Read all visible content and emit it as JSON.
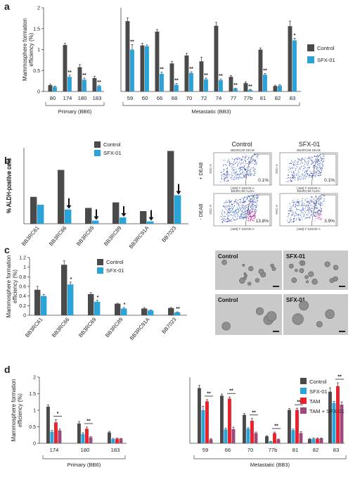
{
  "colors": {
    "control": "#4a4a4a",
    "sfx": "#2aa3d8",
    "tam": "#e8232e",
    "tamsfx_a": "#e8232e",
    "tamsfx_b": "#5a6cc0"
  },
  "panels": {
    "a": "a",
    "b": "b",
    "c": "c",
    "d": "d"
  },
  "chart_data": [
    {
      "id": "a",
      "type": "bar",
      "ylabel": "Mammosphere formation efficiency (%)",
      "ylim": [
        0,
        2
      ],
      "yticks": [
        "0",
        "0.5",
        "1",
        "1.5",
        "2"
      ],
      "categories": [
        "80",
        "174",
        "180",
        "183",
        "59",
        "60",
        "66",
        "68",
        "70",
        "72",
        "74",
        "77",
        "77b",
        "81",
        "82",
        "83"
      ],
      "groups": [
        {
          "label": "Primary (BB6)",
          "from": 0,
          "to": 3
        },
        {
          "label": "Metastatic (BB3)",
          "from": 4,
          "to": 15
        }
      ],
      "legend": [
        "Control",
        "SFX-01"
      ],
      "series": [
        {
          "name": "Control",
          "values": [
            0.15,
            1.11,
            0.58,
            0.32,
            1.68,
            1.1,
            1.43,
            0.67,
            0.86,
            0.72,
            1.57,
            0.35,
            0.2,
            1.0,
            0.13,
            1.56
          ]
        },
        {
          "name": "SFX-01",
          "values": [
            0.11,
            0.35,
            0.28,
            0.13,
            1.0,
            1.08,
            0.42,
            0.16,
            0.44,
            0.29,
            0.27,
            0.07,
            0.04,
            0.4,
            0.14,
            1.22
          ]
        }
      ],
      "errors": [
        [
          0.02,
          0.04,
          0.06,
          0.04,
          0.08,
          0.05,
          0.05,
          0.05,
          0.05,
          0.1,
          0.08,
          0.03,
          0.03,
          0.04,
          0.02,
          0.12
        ],
        [
          0.02,
          0.04,
          0.04,
          0.02,
          0.12,
          0.03,
          0.04,
          0.03,
          0.03,
          0.03,
          0.03,
          0.01,
          0.01,
          0.03,
          0.02,
          0.05
        ]
      ],
      "stars": [
        "",
        "**",
        "**",
        "**",
        "**",
        "",
        "**",
        "**",
        "**",
        "**",
        "**",
        "**",
        "**",
        "**",
        "",
        "*"
      ]
    },
    {
      "id": "b",
      "type": "bar",
      "ylabel": "% ALDH-positive cells",
      "ylim": [
        0,
        48
      ],
      "categories": [
        "BB3RC61",
        "BB3RC66",
        "BB3RC69",
        "BB3RC89",
        "BB3RC91A",
        "BB7023"
      ],
      "legend": [
        "Control",
        "SFX-01"
      ],
      "series": [
        {
          "name": "Control",
          "values": [
            17,
            34,
            10,
            13.5,
            8,
            46
          ]
        },
        {
          "name": "SFX-01",
          "values": [
            12,
            9,
            2,
            4,
            1.5,
            18
          ]
        }
      ],
      "arrows": [
        false,
        true,
        true,
        true,
        true,
        true
      ]
    },
    {
      "id": "c",
      "type": "bar",
      "ylabel": "Mammosphere formation efficiency (%)",
      "ylim": [
        0,
        1.2
      ],
      "yticks": [
        "0",
        "0.2",
        "0.4",
        "0.6",
        "0.8",
        "1",
        "1.2"
      ],
      "categories": [
        "BB3RC61",
        "BB3RC66",
        "BB3RC69",
        "BB3RC89",
        "BB3RC91A",
        "BB7023"
      ],
      "legend": [
        "Control",
        "SFX-01"
      ],
      "series": [
        {
          "name": "Control",
          "values": [
            0.53,
            1.05,
            0.44,
            0.24,
            0.14,
            0.15
          ]
        },
        {
          "name": "SFX-01",
          "values": [
            0.4,
            0.64,
            0.28,
            0.14,
            0.1,
            0.06
          ]
        }
      ],
      "errors": [
        [
          0.07,
          0.08,
          0.03,
          0.01,
          0.02,
          0.01
        ],
        [
          0.03,
          0.05,
          0.03,
          0.02,
          0.01,
          0.01
        ]
      ],
      "stars": [
        "",
        "*",
        "*",
        "*",
        "",
        "**"
      ]
    },
    {
      "id": "d",
      "type": "bar",
      "ylabel": "Mammosphere formation efficiency (%)",
      "ylim": [
        0,
        2
      ],
      "yticks": [
        "0",
        "0.5",
        "1",
        "1.5",
        "2"
      ],
      "categories": [
        "174",
        "180",
        "183",
        "59",
        "66",
        "70",
        "77b",
        "81",
        "82",
        "83"
      ],
      "groups": [
        {
          "label": "Primary (BB6)",
          "from": 0,
          "to": 2
        },
        {
          "label": "Metastatic (BB3)",
          "from": 3,
          "to": 9
        }
      ],
      "legend": [
        "Control",
        "SFX-01",
        "TAM",
        "TAM + SFX-01"
      ],
      "series": [
        {
          "name": "Control",
          "values": [
            1.11,
            0.6,
            0.33,
            1.67,
            1.44,
            0.86,
            0.21,
            1.01,
            0.13,
            1.56
          ]
        },
        {
          "name": "SFX-01",
          "values": [
            0.35,
            0.28,
            0.13,
            1.0,
            0.42,
            0.44,
            0.05,
            0.4,
            0.14,
            1.22
          ]
        },
        {
          "name": "TAM",
          "values": [
            0.63,
            0.44,
            0.14,
            1.27,
            1.35,
            0.68,
            0.31,
            1.01,
            0.14,
            1.73
          ]
        },
        {
          "name": "TAM + SFX-01",
          "values": [
            0.39,
            0.18,
            0.14,
            0.12,
            0.43,
            0.31,
            0.12,
            0.31,
            0.15,
            1.17
          ]
        }
      ],
      "errors": [
        [
          0.05,
          0.06,
          0.03,
          0.08,
          0.05,
          0.04,
          0.02,
          0.04,
          0.02,
          0.12
        ],
        [
          0.04,
          0.04,
          0.02,
          0.12,
          0.04,
          0.03,
          0.01,
          0.03,
          0.02,
          0.05
        ],
        [
          0.08,
          0.05,
          0.02,
          0.05,
          0.05,
          0.07,
          0.03,
          0.05,
          0.02,
          0.1
        ],
        [
          0.04,
          0.02,
          0.01,
          0.02,
          0.06,
          0.03,
          0.01,
          0.04,
          0.01,
          0.08
        ]
      ],
      "brackets": [
        "*",
        "**",
        "",
        "**",
        "**",
        "**",
        "**",
        "**",
        "",
        "**"
      ]
    }
  ],
  "flow": {
    "col_labels": [
      "Control",
      "SFX-01"
    ],
    "row_labels": [
      "+ DEAB",
      "- DEAB"
    ],
    "plots": [
      {
        "title": "BB3RC89 DEAB",
        "pct": "0.1%",
        "xlab": "[488] F 530/30-A",
        "ylab": "SSC-A"
      },
      {
        "title": "BB3RC89 DEAB",
        "pct": "0.1%",
        "xlab": "[488] F 530/30-A",
        "ylab": "SSC-A"
      },
      {
        "title": "BB3RC89 ALDH",
        "pct": "13.8%",
        "xlab": "[488] F 530/30-A",
        "ylab": "SSC-A"
      },
      {
        "title": "BB3RC89 ALDH",
        "pct": "3.9%",
        "xlab": "[488] F 530/30-A",
        "ylab": "SSC-A"
      }
    ]
  },
  "micro": {
    "labels": [
      "Control",
      "SFX-01",
      "Control",
      "SFX-01"
    ]
  }
}
